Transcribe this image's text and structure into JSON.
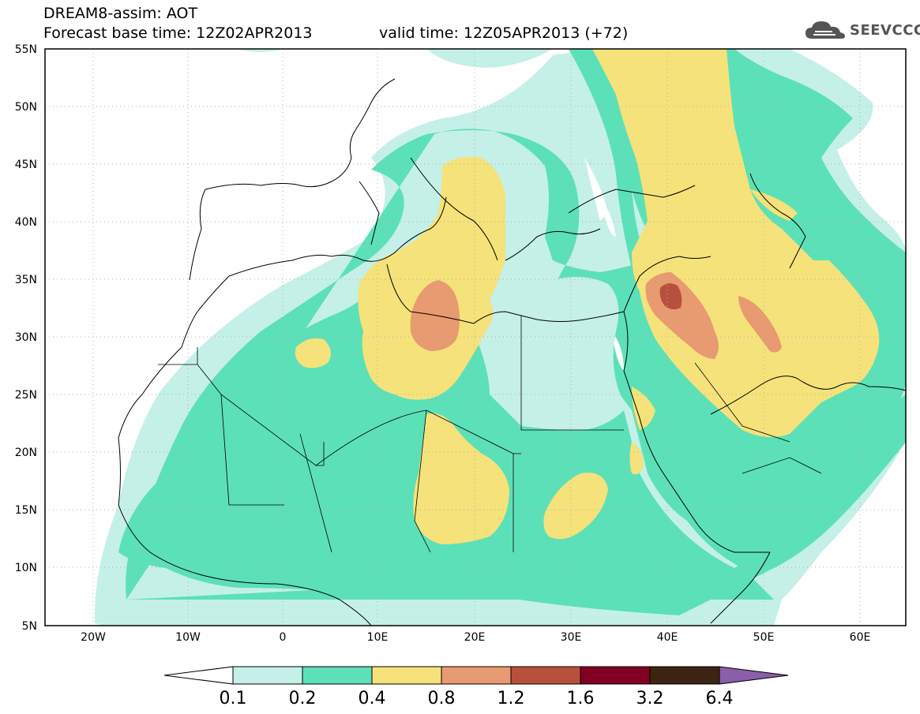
{
  "header": {
    "title_line1": "DREAM8-assim: AOT",
    "title_line2": "Forecast base time: 12Z02APR2013",
    "valid_time": "valid time: 12Z05APR2013 (+72)",
    "logo_text": "SEEVCCC"
  },
  "map": {
    "lat_labels": [
      "55N",
      "50N",
      "45N",
      "40N",
      "35N",
      "30N",
      "25N",
      "20N",
      "15N",
      "10N",
      "5N"
    ],
    "lon_labels": [
      "20W",
      "10W",
      "0",
      "10E",
      "20E",
      "30E",
      "40E",
      "50E",
      "60E"
    ]
  },
  "colorbar": {
    "ticks": [
      "0.1",
      "0.2",
      "0.4",
      "0.8",
      "1.2",
      "1.6",
      "3.2",
      "6.4"
    ],
    "colors": [
      "#ffffff",
      "#c4f0e8",
      "#5ce0b8",
      "#f5e27a",
      "#e89a70",
      "#b8503e",
      "#820022",
      "#3d2412",
      "#8a5ea8"
    ]
  }
}
